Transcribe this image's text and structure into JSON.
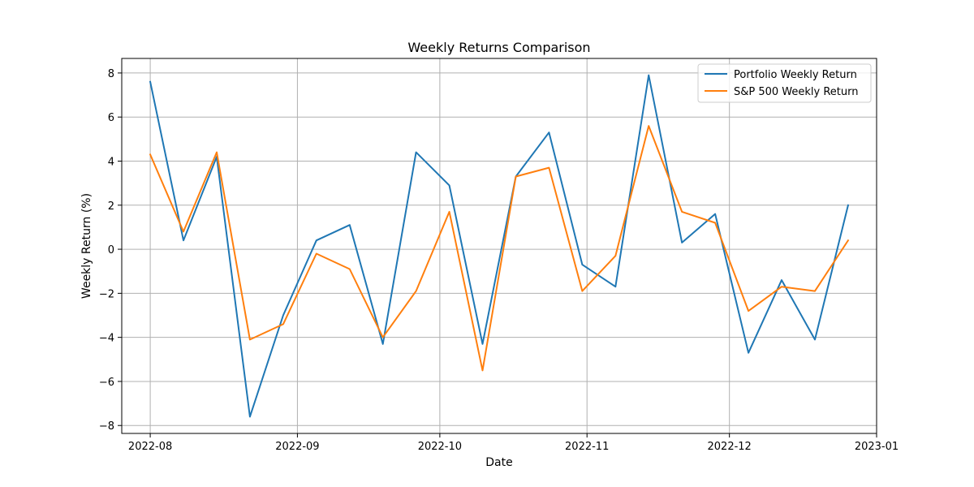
{
  "chart_data": {
    "type": "line",
    "title": "Weekly Returns Comparison",
    "xlabel": "Date",
    "ylabel": "Weekly Return (%)",
    "x": [
      "2022-08-01",
      "2022-08-08",
      "2022-08-15",
      "2022-08-22",
      "2022-08-29",
      "2022-09-05",
      "2022-09-12",
      "2022-09-19",
      "2022-09-26",
      "2022-10-03",
      "2022-10-10",
      "2022-10-17",
      "2022-10-24",
      "2022-10-31",
      "2022-11-07",
      "2022-11-14",
      "2022-11-21",
      "2022-11-28",
      "2022-12-05",
      "2022-12-12",
      "2022-12-19",
      "2022-12-26"
    ],
    "series": [
      {
        "name": "Portfolio Weekly Return",
        "color": "#1f77b4",
        "values": [
          7.6,
          0.4,
          4.2,
          -7.6,
          -3.0,
          0.4,
          1.1,
          -4.3,
          4.4,
          2.9,
          -4.3,
          3.3,
          5.3,
          -0.7,
          -1.7,
          7.9,
          0.3,
          1.6,
          -4.7,
          -1.4,
          -4.1,
          2.0
        ]
      },
      {
        "name": "S&P 500 Weekly Return",
        "color": "#ff7f0e",
        "values": [
          4.3,
          0.8,
          4.4,
          -4.1,
          -3.4,
          -0.2,
          -0.9,
          -4.0,
          -1.9,
          1.7,
          -5.5,
          3.3,
          3.7,
          -1.9,
          -0.3,
          5.6,
          1.7,
          1.2,
          -2.8,
          -1.7,
          -1.9,
          0.4
        ]
      }
    ],
    "xlim": [
      "2022-07-26",
      "2023-01-01"
    ],
    "ylim": [
      -8.36,
      8.66
    ],
    "x_ticks": [
      "2022-08-01",
      "2022-09-01",
      "2022-10-01",
      "2022-11-01",
      "2022-12-01",
      "2023-01-01"
    ],
    "x_tick_labels": [
      "2022-08",
      "2022-09",
      "2022-10",
      "2022-11",
      "2022-12",
      "2023-01"
    ],
    "y_ticks": [
      -8,
      -6,
      -4,
      -2,
      0,
      2,
      4,
      6,
      8
    ],
    "y_tick_labels": [
      "−8",
      "−6",
      "−4",
      "−2",
      "0",
      "2",
      "4",
      "6",
      "8"
    ],
    "grid": true,
    "legend": "top-right"
  }
}
